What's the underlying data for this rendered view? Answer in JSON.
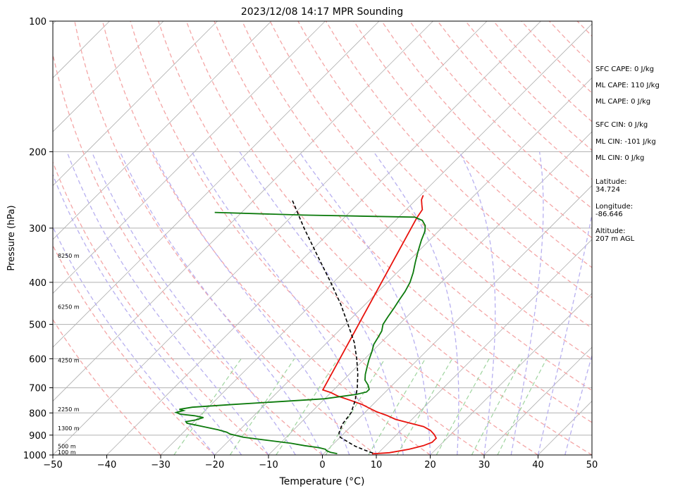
{
  "chart_data": {
    "type": "line",
    "title": "2023/12/08 14:17 MPR Sounding",
    "xlabel": "Temperature (°C)",
    "ylabel": "Pressure (hPa)",
    "xlim": [
      -50,
      50
    ],
    "ylim": [
      1000,
      100
    ],
    "y_scale": "log",
    "grid": true,
    "skew": true,
    "x_ticks": [
      -50,
      -40,
      -30,
      -20,
      -10,
      0,
      10,
      20,
      30,
      40,
      50
    ],
    "y_ticks": [
      100,
      200,
      300,
      400,
      500,
      600,
      700,
      800,
      900,
      1000
    ],
    "height_labels": [
      {
        "label": "100 m",
        "p": 985
      },
      {
        "label": "500 m",
        "p": 955
      },
      {
        "label": "1300 m",
        "p": 868
      },
      {
        "label": "2250 m",
        "p": 785
      },
      {
        "label": "4250 m",
        "p": 605
      },
      {
        "label": "6250 m",
        "p": 455
      },
      {
        "label": "8250 m",
        "p": 347
      }
    ],
    "series": [
      {
        "key": "temperature",
        "color": "#e8120c",
        "points": [
          [
            994,
            9
          ],
          [
            988,
            12
          ],
          [
            970,
            15
          ],
          [
            952,
            17
          ],
          [
            935,
            18
          ],
          [
            915,
            18
          ],
          [
            898,
            17
          ],
          [
            878,
            15.5
          ],
          [
            860,
            13.5
          ],
          [
            843,
            10
          ],
          [
            828,
            7
          ],
          [
            810,
            4.5
          ],
          [
            795,
            2
          ],
          [
            780,
            0
          ],
          [
            765,
            -2
          ],
          [
            748,
            -5
          ],
          [
            732,
            -8
          ],
          [
            718,
            -10
          ],
          [
            708,
            -12
          ],
          [
            284,
            -26.5
          ],
          [
            272,
            -27
          ],
          [
            265,
            -28
          ],
          [
            258,
            -29
          ],
          [
            252,
            -29.5
          ]
        ]
      },
      {
        "key": "dewpoint",
        "color": "#0c7a0c",
        "points": [
          [
            993,
            2.5
          ],
          [
            986,
            1
          ],
          [
            978,
            0
          ],
          [
            970,
            -0.5
          ],
          [
            962,
            -2
          ],
          [
            952,
            -5
          ],
          [
            940,
            -8
          ],
          [
            925,
            -13
          ],
          [
            910,
            -18
          ],
          [
            895,
            -21
          ],
          [
            886,
            -22
          ],
          [
            875,
            -24
          ],
          [
            862,
            -27
          ],
          [
            845,
            -31
          ],
          [
            838,
            -31.5
          ],
          [
            830,
            -30
          ],
          [
            820,
            -29
          ],
          [
            812,
            -31
          ],
          [
            805,
            -34
          ],
          [
            798,
            -35
          ],
          [
            790,
            -34
          ],
          [
            785,
            -35
          ],
          [
            776,
            -33
          ],
          [
            765,
            -26
          ],
          [
            752,
            -17
          ],
          [
            742,
            -10
          ],
          [
            725,
            -5
          ],
          [
            716,
            -3.5
          ],
          [
            706,
            -3.5
          ],
          [
            690,
            -4.5
          ],
          [
            672,
            -6
          ],
          [
            652,
            -7
          ],
          [
            628,
            -8
          ],
          [
            604,
            -9
          ],
          [
            578,
            -10
          ],
          [
            556,
            -11
          ],
          [
            536,
            -11.5
          ],
          [
            518,
            -12
          ],
          [
            500,
            -13
          ],
          [
            480,
            -13.5
          ],
          [
            458,
            -14
          ],
          [
            440,
            -14.5
          ],
          [
            420,
            -15
          ],
          [
            400,
            -15.8
          ],
          [
            380,
            -17
          ],
          [
            360,
            -18.5
          ],
          [
            340,
            -20
          ],
          [
            320,
            -21.5
          ],
          [
            305,
            -22.5
          ],
          [
            296,
            -23.5
          ],
          [
            288,
            -25
          ],
          [
            283,
            -27
          ],
          [
            280,
            -48
          ],
          [
            276,
            -65
          ]
        ]
      },
      {
        "key": "parcel",
        "color": "#000000",
        "dashed": true,
        "points": [
          [
            990,
            9
          ],
          [
            975,
            7
          ],
          [
            955,
            4.5
          ],
          [
            935,
            2.5
          ],
          [
            910,
            0
          ],
          [
            890,
            -1
          ],
          [
            850,
            -2
          ],
          [
            800,
            -2.5
          ],
          [
            750,
            -4
          ],
          [
            700,
            -6
          ],
          [
            650,
            -8.5
          ],
          [
            600,
            -11.5
          ],
          [
            550,
            -15
          ],
          [
            500,
            -19.5
          ],
          [
            450,
            -24.5
          ],
          [
            400,
            -30.5
          ],
          [
            350,
            -37.5
          ],
          [
            300,
            -45.5
          ],
          [
            258,
            -53
          ]
        ]
      }
    ]
  },
  "stats": {
    "sfc_cape": "SFC CAPE: 0 J/kg",
    "ml_cape_1": "ML CAPE: 110 J/kg",
    "ml_cape_2": "ML CAPE: 0 J/kg",
    "sfc_cin": "SFC CIN: 0 J/kg",
    "ml_cin_1": "ML CIN: -101 J/kg",
    "ml_cin_2": "ML CIN: 0 J/kg",
    "latitude": "Latitude:\n34.724",
    "longitude": "Longitude:\n-86.646",
    "altitude": "Altitude:\n207 m AGL"
  }
}
